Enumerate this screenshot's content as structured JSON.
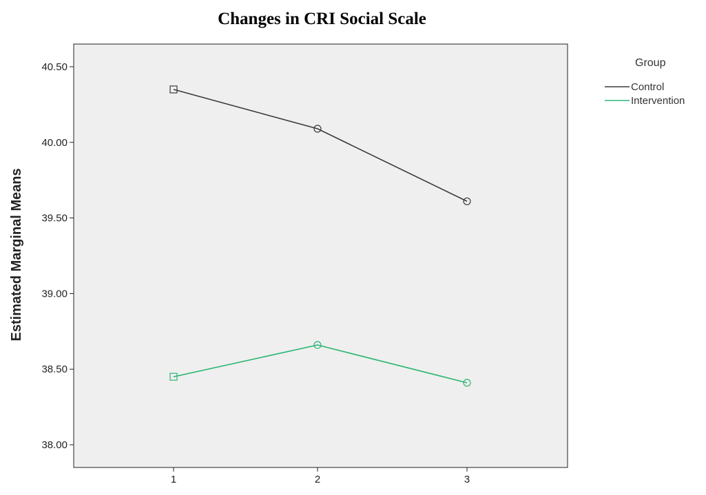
{
  "chart_data": {
    "type": "line",
    "title": "Changes in CRI Social Scale",
    "xlabel": "",
    "ylabel": "Estimated Marginal Means",
    "x": [
      "1",
      "2",
      "3"
    ],
    "ylim": [
      37.85,
      40.65
    ],
    "yticks": [
      "38.00",
      "38.50",
      "39.00",
      "39.50",
      "40.00",
      "40.50"
    ],
    "grid": false,
    "legend_title": "Group",
    "legend_position": "right",
    "plot_background": "#efefef",
    "series": [
      {
        "name": "Control",
        "values": [
          40.35,
          40.09,
          39.61
        ],
        "color": "#3a3a3a"
      },
      {
        "name": "Intervention",
        "values": [
          38.45,
          38.66,
          38.41
        ],
        "color": "#2bb673"
      }
    ]
  }
}
